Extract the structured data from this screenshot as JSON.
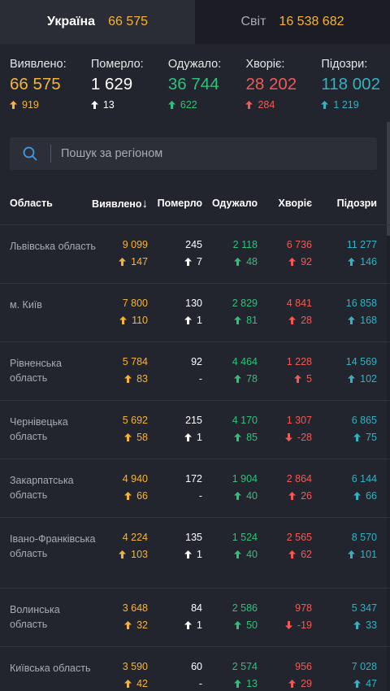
{
  "tabs": [
    {
      "label": "Україна",
      "value": "66 575"
    },
    {
      "label": "Світ",
      "value": "16 538 682"
    }
  ],
  "stats": [
    {
      "label": "Виявлено:",
      "value": "66 575",
      "delta": "919",
      "color": "yellow",
      "dir": "up"
    },
    {
      "label": "Померло:",
      "value": "1 629",
      "delta": "13",
      "color": "white",
      "dir": "up"
    },
    {
      "label": "Одужало:",
      "value": "36 744",
      "delta": "622",
      "color": "green",
      "dir": "up"
    },
    {
      "label": "Хворіє:",
      "value": "28 202",
      "delta": "284",
      "color": "red",
      "dir": "up"
    },
    {
      "label": "Підозри:",
      "value": "118 002",
      "delta": "1 219",
      "color": "cyan",
      "dir": "up"
    }
  ],
  "search": {
    "placeholder": "Пошук за регіоном"
  },
  "table": {
    "headers": {
      "region": "Область",
      "confirmed": "Виявлено",
      "sort_glyph": "↓",
      "deaths": "Померло",
      "recovered": "Одужало",
      "sick": "Хворіє",
      "suspected": "Підозри"
    },
    "rows": [
      {
        "name": "Львівська область",
        "confirmed": "9 099",
        "confirmed_d": "147",
        "deaths": "245",
        "deaths_d": "7",
        "recovered": "2 118",
        "recovered_d": "48",
        "sick": "6 736",
        "sick_d": "92",
        "sick_dir": "up",
        "suspected": "11 277",
        "suspected_d": "146"
      },
      {
        "name": "м. Київ",
        "confirmed": "7 800",
        "confirmed_d": "110",
        "deaths": "130",
        "deaths_d": "1",
        "recovered": "2 829",
        "recovered_d": "81",
        "sick": "4 841",
        "sick_d": "28",
        "sick_dir": "up",
        "suspected": "16 858",
        "suspected_d": "168"
      },
      {
        "name": "Рівненська область",
        "confirmed": "5 784",
        "confirmed_d": "83",
        "deaths": "92",
        "deaths_d": "-",
        "recovered": "4 464",
        "recovered_d": "78",
        "sick": "1 228",
        "sick_d": "5",
        "sick_dir": "up",
        "suspected": "14 569",
        "suspected_d": "102"
      },
      {
        "name": "Чернівецька область",
        "confirmed": "5 692",
        "confirmed_d": "58",
        "deaths": "215",
        "deaths_d": "1",
        "recovered": "4 170",
        "recovered_d": "85",
        "sick": "1 307",
        "sick_d": "-28",
        "sick_dir": "down",
        "suspected": "6 865",
        "suspected_d": "75"
      },
      {
        "name": "Закарпатська область",
        "confirmed": "4 940",
        "confirmed_d": "66",
        "deaths": "172",
        "deaths_d": "-",
        "recovered": "1 904",
        "recovered_d": "40",
        "sick": "2 864",
        "sick_d": "26",
        "sick_dir": "up",
        "suspected": "6 144",
        "suspected_d": "66"
      },
      {
        "name": "Івано-Франківська область",
        "confirmed": "4 224",
        "confirmed_d": "103",
        "deaths": "135",
        "deaths_d": "1",
        "recovered": "1 524",
        "recovered_d": "40",
        "sick": "2 565",
        "sick_d": "62",
        "sick_dir": "up",
        "suspected": "8 570",
        "suspected_d": "101"
      },
      {
        "name": "Волинська область",
        "confirmed": "3 648",
        "confirmed_d": "32",
        "deaths": "84",
        "deaths_d": "1",
        "recovered": "2 586",
        "recovered_d": "50",
        "sick": "978",
        "sick_d": "-19",
        "sick_dir": "down",
        "suspected": "5 347",
        "suspected_d": "33"
      },
      {
        "name": "Київська область",
        "confirmed": "3 590",
        "confirmed_d": "42",
        "deaths": "60",
        "deaths_d": "-",
        "recovered": "2 574",
        "recovered_d": "13",
        "sick": "956",
        "sick_d": "29",
        "sick_dir": "up",
        "suspected": "7 028",
        "suspected_d": "47"
      }
    ]
  },
  "colors": {
    "yellow": "#f4b43c",
    "white": "#ffffff",
    "green": "#2fc17a",
    "red": "#f05a56",
    "cyan": "#34b1c0",
    "background": "#23252e",
    "search_icon": "#3d9be9"
  }
}
